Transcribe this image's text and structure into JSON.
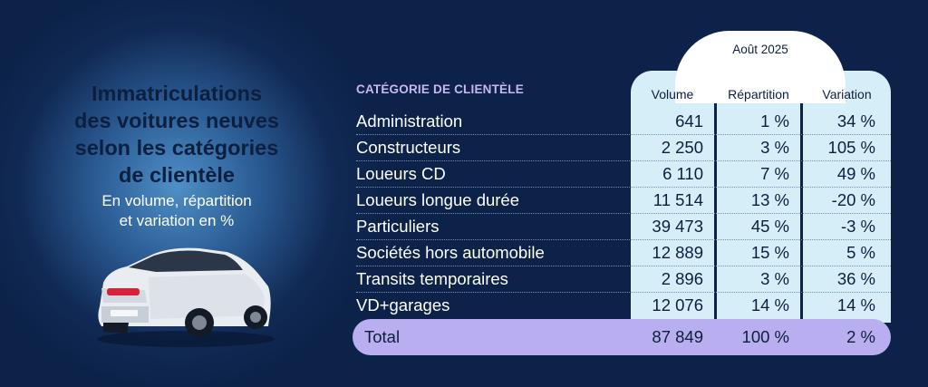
{
  "title_lines": [
    "Immatriculations",
    "des voitures neuves",
    "selon les catégories",
    "de clientèle"
  ],
  "subtitle_lines": [
    "En volume, répartition",
    "et variation en %"
  ],
  "table": {
    "category_header": "CATÉGORIE DE CLIENTÈLE",
    "period": "Août 2025",
    "columns": [
      "Volume",
      "Répartition",
      "Variation"
    ],
    "rows": [
      {
        "category": "Administration",
        "volume": "641",
        "share": "1 %",
        "variation": "34 %"
      },
      {
        "category": "Constructeurs",
        "volume": "2 250",
        "share": "3 %",
        "variation": "105 %"
      },
      {
        "category": "Loueurs CD",
        "volume": "6 110",
        "share": "7 %",
        "variation": "49 %"
      },
      {
        "category": "Loueurs longue durée",
        "volume": "11 514",
        "share": "13 %",
        "variation": "-20 %"
      },
      {
        "category": "Particuliers",
        "volume": "39 473",
        "share": "45 %",
        "variation": "-3 %"
      },
      {
        "category": "Sociétés hors automobile",
        "volume": "12 889",
        "share": "15 %",
        "variation": "5 %"
      },
      {
        "category": "Transits temporaires",
        "volume": "2 896",
        "share": "3 %",
        "variation": "36 %"
      },
      {
        "category": "VD+garages",
        "volume": "12 076",
        "share": "14 %",
        "variation": "14 %"
      }
    ],
    "total": {
      "label": "Total",
      "volume": "87 849",
      "share": "100 %",
      "variation": "2 %"
    }
  },
  "colors": {
    "background": "#0c2248",
    "column_fill": "#d6eef8",
    "total_fill": "#b9aef0",
    "header_accent": "#c7b8f2",
    "dark_text": "#0d1f3e"
  },
  "icons": [
    "car-illustration"
  ]
}
